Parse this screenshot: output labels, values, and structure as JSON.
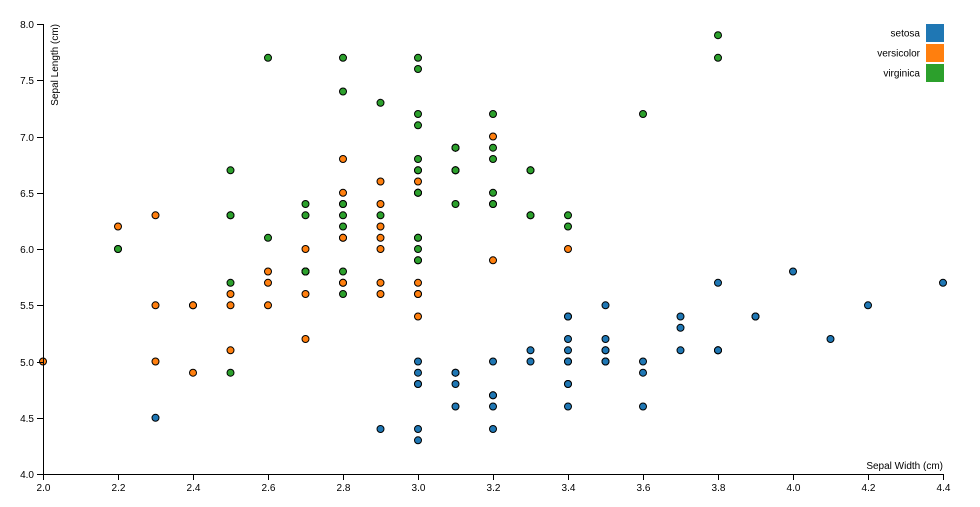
{
  "chart_data": {
    "type": "scatter",
    "title": "",
    "xlabel": "Sepal Width (cm)",
    "ylabel": "Sepal Length (cm)",
    "xlim": [
      2.0,
      4.4
    ],
    "ylim": [
      4.0,
      8.0
    ],
    "xticks": [
      "2.0",
      "2.2",
      "2.4",
      "2.6",
      "2.8",
      "3.0",
      "3.2",
      "3.4",
      "3.6",
      "3.8",
      "4.0",
      "4.2",
      "4.4"
    ],
    "yticks": [
      "4.0",
      "4.5",
      "5.0",
      "5.5",
      "6.0",
      "6.5",
      "7.0",
      "7.5",
      "8.0"
    ],
    "grid": false,
    "legend_position": "top-right",
    "series": [
      {
        "name": "setosa",
        "color": "#1f77b4",
        "points": [
          [
            5.1,
            3.5
          ],
          [
            4.9,
            3.0
          ],
          [
            4.7,
            3.2
          ],
          [
            4.6,
            3.1
          ],
          [
            5.0,
            3.6
          ],
          [
            5.4,
            3.9
          ],
          [
            4.6,
            3.4
          ],
          [
            5.0,
            3.4
          ],
          [
            4.4,
            2.9
          ],
          [
            4.9,
            3.1
          ],
          [
            5.4,
            3.7
          ],
          [
            4.8,
            3.4
          ],
          [
            4.8,
            3.0
          ],
          [
            4.3,
            3.0
          ],
          [
            5.8,
            4.0
          ],
          [
            5.7,
            4.4
          ],
          [
            5.4,
            3.9
          ],
          [
            5.1,
            3.5
          ],
          [
            5.7,
            3.8
          ],
          [
            5.1,
            3.8
          ],
          [
            5.4,
            3.4
          ],
          [
            5.1,
            3.7
          ],
          [
            4.6,
            3.6
          ],
          [
            5.1,
            3.3
          ],
          [
            4.8,
            3.4
          ],
          [
            5.0,
            3.0
          ],
          [
            5.0,
            3.4
          ],
          [
            5.2,
            3.5
          ],
          [
            5.2,
            3.4
          ],
          [
            4.7,
            3.2
          ],
          [
            4.8,
            3.1
          ],
          [
            5.4,
            3.4
          ],
          [
            5.2,
            4.1
          ],
          [
            5.5,
            4.2
          ],
          [
            4.9,
            3.1
          ],
          [
            5.0,
            3.2
          ],
          [
            5.5,
            3.5
          ],
          [
            4.9,
            3.6
          ],
          [
            4.4,
            3.0
          ],
          [
            5.1,
            3.4
          ],
          [
            5.0,
            3.5
          ],
          [
            4.5,
            2.3
          ],
          [
            4.4,
            3.2
          ],
          [
            5.0,
            3.5
          ],
          [
            5.1,
            3.8
          ],
          [
            4.8,
            3.0
          ],
          [
            5.1,
            3.8
          ],
          [
            4.6,
            3.2
          ],
          [
            5.3,
            3.7
          ],
          [
            5.0,
            3.3
          ]
        ]
      },
      {
        "name": "versicolor",
        "color": "#ff7f0e",
        "points": [
          [
            7.0,
            3.2
          ],
          [
            6.4,
            3.2
          ],
          [
            6.9,
            3.1
          ],
          [
            5.5,
            2.3
          ],
          [
            6.5,
            2.8
          ],
          [
            5.7,
            2.8
          ],
          [
            6.3,
            3.3
          ],
          [
            4.9,
            2.4
          ],
          [
            6.6,
            2.9
          ],
          [
            5.2,
            2.7
          ],
          [
            5.0,
            2.0
          ],
          [
            5.9,
            3.0
          ],
          [
            6.0,
            2.2
          ],
          [
            6.1,
            2.9
          ],
          [
            5.6,
            2.9
          ],
          [
            6.7,
            3.1
          ],
          [
            5.6,
            3.0
          ],
          [
            5.8,
            2.7
          ],
          [
            6.2,
            2.2
          ],
          [
            5.6,
            2.5
          ],
          [
            5.9,
            3.2
          ],
          [
            6.1,
            2.8
          ],
          [
            6.3,
            2.5
          ],
          [
            6.1,
            2.8
          ],
          [
            6.4,
            2.9
          ],
          [
            6.6,
            3.0
          ],
          [
            6.8,
            2.8
          ],
          [
            6.7,
            3.0
          ],
          [
            6.0,
            2.9
          ],
          [
            5.7,
            2.6
          ],
          [
            5.5,
            2.4
          ],
          [
            5.5,
            2.4
          ],
          [
            5.8,
            2.7
          ],
          [
            6.0,
            2.7
          ],
          [
            5.4,
            3.0
          ],
          [
            6.0,
            3.4
          ],
          [
            6.7,
            3.1
          ],
          [
            6.3,
            2.3
          ],
          [
            5.6,
            3.0
          ],
          [
            5.5,
            2.5
          ],
          [
            5.5,
            2.6
          ],
          [
            6.1,
            3.0
          ],
          [
            5.8,
            2.6
          ],
          [
            5.0,
            2.3
          ],
          [
            5.6,
            2.7
          ],
          [
            5.7,
            3.0
          ],
          [
            5.7,
            2.9
          ],
          [
            6.2,
            2.9
          ],
          [
            5.1,
            2.5
          ],
          [
            5.7,
            2.8
          ]
        ]
      },
      {
        "name": "virginica",
        "color": "#2ca02c",
        "points": [
          [
            6.3,
            3.3
          ],
          [
            5.8,
            2.7
          ],
          [
            7.1,
            3.0
          ],
          [
            6.3,
            2.9
          ],
          [
            6.5,
            3.0
          ],
          [
            7.6,
            3.0
          ],
          [
            4.9,
            2.5
          ],
          [
            7.3,
            2.9
          ],
          [
            6.7,
            2.5
          ],
          [
            7.2,
            3.6
          ],
          [
            6.5,
            3.2
          ],
          [
            6.4,
            2.7
          ],
          [
            6.8,
            3.0
          ],
          [
            5.7,
            2.5
          ],
          [
            5.8,
            2.8
          ],
          [
            6.4,
            3.2
          ],
          [
            6.5,
            3.0
          ],
          [
            7.7,
            3.8
          ],
          [
            7.7,
            2.6
          ],
          [
            6.0,
            2.2
          ],
          [
            6.9,
            3.2
          ],
          [
            5.6,
            2.8
          ],
          [
            7.7,
            2.8
          ],
          [
            6.3,
            2.7
          ],
          [
            6.7,
            3.3
          ],
          [
            7.2,
            3.2
          ],
          [
            6.2,
            2.8
          ],
          [
            6.1,
            3.0
          ],
          [
            6.4,
            2.8
          ],
          [
            7.2,
            3.0
          ],
          [
            7.4,
            2.8
          ],
          [
            7.9,
            3.8
          ],
          [
            6.4,
            2.8
          ],
          [
            6.3,
            2.8
          ],
          [
            6.1,
            2.6
          ],
          [
            7.7,
            3.0
          ],
          [
            6.3,
            3.4
          ],
          [
            6.4,
            3.1
          ],
          [
            6.0,
            3.0
          ],
          [
            6.9,
            3.1
          ],
          [
            6.7,
            3.1
          ],
          [
            6.9,
            3.1
          ],
          [
            5.8,
            2.7
          ],
          [
            6.8,
            3.2
          ],
          [
            6.7,
            3.3
          ],
          [
            6.7,
            3.0
          ],
          [
            6.3,
            2.5
          ],
          [
            6.5,
            3.0
          ],
          [
            6.2,
            3.4
          ],
          [
            5.9,
            3.0
          ]
        ]
      }
    ]
  }
}
